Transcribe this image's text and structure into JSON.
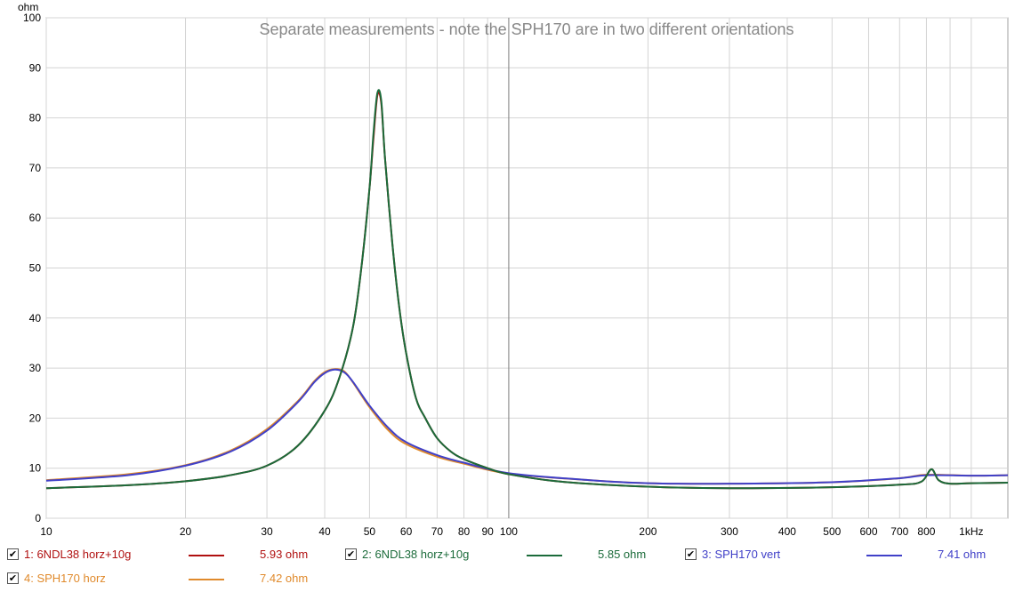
{
  "chart_data": {
    "type": "line",
    "title": "Separate measurements - note the SPH170 are in two different orientations",
    "ylabel": "ohm",
    "xlabel": "",
    "xscale": "log",
    "xlim": [
      10,
      1200
    ],
    "ylim": [
      0,
      100
    ],
    "grid": true,
    "x_ticks": [
      {
        "v": 10,
        "label": "10"
      },
      {
        "v": 20,
        "label": "20"
      },
      {
        "v": 30,
        "label": "30"
      },
      {
        "v": 40,
        "label": "40"
      },
      {
        "v": 50,
        "label": "50"
      },
      {
        "v": 60,
        "label": "60"
      },
      {
        "v": 70,
        "label": "70"
      },
      {
        "v": 80,
        "label": "80"
      },
      {
        "v": 90,
        "label": "90"
      },
      {
        "v": 100,
        "label": "100"
      },
      {
        "v": 200,
        "label": "200"
      },
      {
        "v": 300,
        "label": "300"
      },
      {
        "v": 400,
        "label": "400"
      },
      {
        "v": 500,
        "label": "500"
      },
      {
        "v": 600,
        "label": "600"
      },
      {
        "v": 700,
        "label": "700"
      },
      {
        "v": 800,
        "label": "800"
      },
      {
        "v": 1000,
        "label": "1kHz"
      }
    ],
    "y_ticks": [
      0,
      10,
      20,
      30,
      40,
      50,
      60,
      70,
      80,
      90,
      100
    ],
    "series": [
      {
        "name": "1: 6NDL38 horz+10g",
        "color": "#b01010",
        "x": [
          10,
          15,
          20,
          25,
          30,
          35,
          40,
          43,
          46,
          48,
          50,
          51,
          52,
          53,
          54,
          56,
          58,
          60,
          63,
          66,
          70,
          75,
          80,
          90,
          100,
          130,
          200,
          300,
          500,
          700,
          780,
          820,
          850,
          900,
          1000,
          1200
        ],
        "y": [
          6.0,
          6.6,
          7.4,
          8.6,
          10.5,
          14.5,
          21.5,
          28,
          38,
          50,
          66,
          76,
          84.5,
          83,
          72,
          55,
          42,
          33,
          24,
          20,
          16,
          13.3,
          11.8,
          10,
          8.8,
          7.3,
          6.3,
          6.0,
          6.2,
          6.7,
          7.3,
          9.8,
          7.6,
          6.9,
          7.0,
          7.1
        ]
      },
      {
        "name": "2: 6NDL38 horz+10g",
        "color": "#1b6b3a",
        "x": [
          10,
          15,
          20,
          25,
          30,
          35,
          40,
          43,
          46,
          48,
          50,
          51,
          52,
          53,
          54,
          56,
          58,
          60,
          63,
          66,
          70,
          75,
          80,
          90,
          100,
          130,
          200,
          300,
          500,
          700,
          780,
          820,
          850,
          900,
          1000,
          1200
        ],
        "y": [
          6.0,
          6.6,
          7.4,
          8.6,
          10.5,
          14.5,
          21.5,
          28,
          38,
          50,
          66,
          77,
          85,
          83.5,
          72,
          55,
          42,
          33,
          24,
          20,
          16,
          13.3,
          11.8,
          10,
          8.8,
          7.3,
          6.3,
          6.0,
          6.2,
          6.7,
          7.3,
          9.8,
          7.6,
          6.9,
          7.0,
          7.1
        ]
      },
      {
        "name": "3: SPH170 vert",
        "color": "#4040c8",
        "x": [
          10,
          15,
          20,
          25,
          30,
          35,
          38,
          40,
          42,
          44,
          46,
          50,
          55,
          60,
          70,
          80,
          100,
          150,
          200,
          300,
          500,
          700,
          800,
          1000,
          1200
        ],
        "y": [
          7.5,
          8.6,
          10.5,
          13.3,
          17.5,
          23.2,
          27.2,
          29.0,
          29.7,
          29.2,
          27.3,
          22.5,
          18.0,
          15.2,
          12.6,
          11.1,
          9.0,
          7.6,
          7.0,
          6.9,
          7.2,
          8.0,
          8.6,
          8.5,
          8.6
        ]
      },
      {
        "name": "4: SPH170 horz",
        "color": "#e08a2c",
        "x": [
          10,
          15,
          20,
          25,
          30,
          35,
          38,
          40,
          42,
          44,
          46,
          50,
          55,
          60,
          70,
          80,
          100,
          150,
          200,
          300,
          500,
          700,
          800,
          1000,
          1200
        ],
        "y": [
          7.6,
          8.8,
          10.6,
          13.5,
          17.8,
          23.4,
          27.4,
          29.2,
          29.8,
          29.4,
          27.2,
          22.2,
          17.5,
          14.8,
          12.3,
          10.9,
          8.9,
          7.6,
          7.0,
          6.9,
          7.2,
          8.0,
          8.7,
          8.5,
          8.6
        ]
      }
    ]
  },
  "legend": [
    {
      "label": "1: 6NDL38 horz+10g",
      "value": "5.93 ohm",
      "checked": "✔",
      "color": "#b01010"
    },
    {
      "label": "2: 6NDL38 horz+10g",
      "value": "5.85 ohm",
      "checked": "✔",
      "color": "#1b6b3a"
    },
    {
      "label": "3: SPH170 vert",
      "value": "7.41 ohm",
      "checked": "✔",
      "color": "#4040c8"
    },
    {
      "label": "4: SPH170 horz",
      "value": "7.42 ohm",
      "checked": "✔",
      "color": "#e08a2c"
    }
  ]
}
